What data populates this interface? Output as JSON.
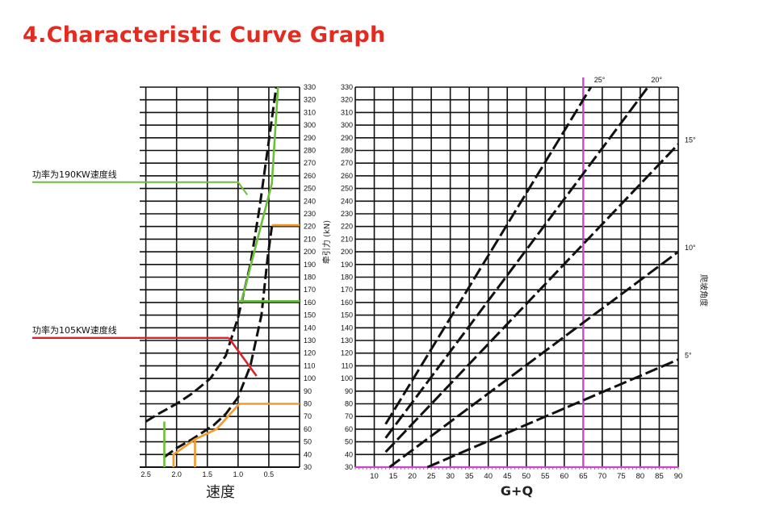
{
  "title": "4.Characteristic Curve Graph",
  "colors": {
    "title": "#e52a1f",
    "grid": "#111111",
    "curve": "#111111",
    "power190": "#6bbf3b",
    "power105": "#d8232a",
    "orange": "#f39a2b",
    "magenta": "#c64ac8"
  },
  "chart_data": [
    {
      "type": "line",
      "xlabel": "速度",
      "ylabel": "牵引力 (kN)",
      "x_tick_labels": [
        "2.5",
        "2.0",
        "1.5",
        "1.0",
        "0.5"
      ],
      "y_tick_labels": [
        "30",
        "40",
        "50",
        "60",
        "70",
        "80",
        "90",
        "100",
        "110",
        "120",
        "130",
        "140",
        "150",
        "160",
        "170",
        "180",
        "190",
        "200",
        "210",
        "220",
        "230",
        "240",
        "250",
        "260",
        "270",
        "280",
        "290",
        "300",
        "310",
        "320",
        "330"
      ],
      "ylim": [
        30,
        330
      ],
      "xlim": [
        2.6,
        0.0
      ],
      "annotations": [
        {
          "text": "功率为190KW速度线",
          "y": 255
        },
        {
          "text": "功率为105KW速度线",
          "y": 132
        }
      ],
      "series": [
        {
          "style": "dashed",
          "points": [
            [
              2.5,
              66
            ],
            [
              2.3,
              72
            ],
            [
              2.0,
              80
            ],
            [
              1.75,
              88
            ],
            [
              1.45,
              100
            ],
            [
              1.2,
              118
            ],
            [
              1.0,
              148
            ],
            [
              0.8,
              190
            ],
            [
              0.65,
              235
            ],
            [
              0.55,
              270
            ],
            [
              0.45,
              305
            ],
            [
              0.38,
              330
            ]
          ]
        },
        {
          "style": "dashed",
          "points": [
            [
              2.2,
              38
            ],
            [
              2.0,
              45
            ],
            [
              1.75,
              52
            ],
            [
              1.4,
              63
            ],
            [
              1.2,
              72
            ],
            [
              1.0,
              85
            ],
            [
              0.8,
              110
            ],
            [
              0.62,
              150
            ],
            [
              0.52,
              195
            ],
            [
              0.45,
              220
            ]
          ]
        },
        {
          "style": "solid",
          "color": "green",
          "points": [
            [
              2.2,
              66
            ],
            [
              2.2,
              30
            ]
          ]
        },
        {
          "style": "solid",
          "color": "green",
          "points": [
            [
              0.95,
              160
            ],
            [
              0.45,
              254
            ],
            [
              0.35,
              330
            ]
          ]
        },
        {
          "style": "solid",
          "color": "green",
          "points": [
            [
              1.0,
              161
            ],
            [
              0.0,
              161
            ]
          ]
        },
        {
          "style": "solid",
          "color": "red",
          "points": [
            [
              1.15,
              132
            ],
            [
              0.7,
              102
            ]
          ]
        },
        {
          "style": "solid",
          "color": "orange",
          "points": [
            [
              2.05,
              30
            ],
            [
              2.05,
              40
            ],
            [
              1.7,
              52
            ],
            [
              1.35,
              60
            ],
            [
              0.98,
              80
            ],
            [
              0.0,
              80
            ]
          ]
        },
        {
          "style": "solid",
          "color": "orange",
          "points": [
            [
              1.7,
              30
            ],
            [
              1.7,
              52
            ]
          ]
        },
        {
          "style": "solid",
          "color": "orange",
          "points": [
            [
              0.45,
              221
            ],
            [
              0.0,
              221
            ]
          ]
        }
      ]
    },
    {
      "type": "line",
      "xlabel": "G+Q",
      "ylabel": "爬坡角度",
      "x_tick_labels": [
        "10",
        "15",
        "20",
        "25",
        "30",
        "35",
        "40",
        "45",
        "50",
        "55",
        "60",
        "65",
        "70",
        "75",
        "80",
        "85",
        "90"
      ],
      "y_tick_labels": [
        "30",
        "40",
        "50",
        "60",
        "70",
        "80",
        "90",
        "100",
        "110",
        "120",
        "130",
        "140",
        "150",
        "160",
        "170",
        "180",
        "190",
        "200",
        "210",
        "220",
        "230",
        "240",
        "250",
        "260",
        "270",
        "280",
        "290",
        "300",
        "310",
        "320",
        "330"
      ],
      "xlim": [
        5,
        90
      ],
      "ylim": [
        30,
        330
      ],
      "marker_x": 65,
      "series": [
        {
          "name": "25°",
          "style": "dashed",
          "points": [
            [
              13,
              64
            ],
            [
              67,
              330
            ]
          ]
        },
        {
          "name": "20°",
          "style": "dashed",
          "points": [
            [
              13,
              53
            ],
            [
              82,
              330
            ]
          ]
        },
        {
          "name": "15°",
          "style": "dashed",
          "points": [
            [
              13,
              42
            ],
            [
              90,
              285
            ]
          ]
        },
        {
          "name": "10°",
          "style": "dashed",
          "points": [
            [
              14,
              30
            ],
            [
              90,
              200
            ]
          ]
        },
        {
          "name": "5°",
          "style": "dashed",
          "points": [
            [
              24,
              30
            ],
            [
              90,
              115
            ]
          ]
        }
      ]
    }
  ]
}
